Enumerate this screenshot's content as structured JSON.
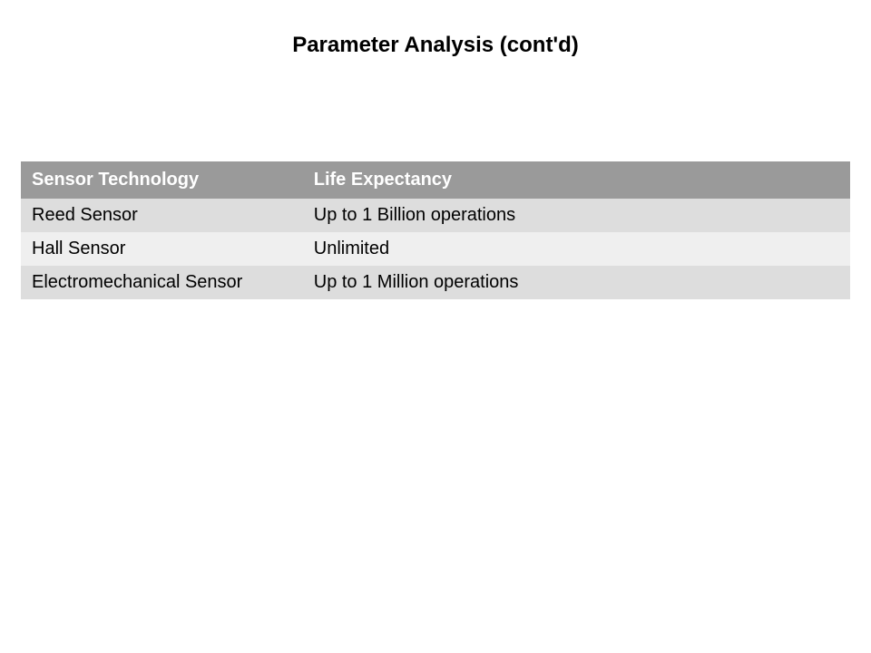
{
  "title": "Parameter Analysis (cont'd)",
  "table": {
    "columns": [
      {
        "label": "Sensor Technology",
        "width_pct": 34
      },
      {
        "label": "Life Expectancy",
        "width_pct": 66
      }
    ],
    "rows": [
      {
        "sensor": "Reed Sensor",
        "life": "Up to 1 Billion operations"
      },
      {
        "sensor": "Hall Sensor",
        "life": "Unlimited"
      },
      {
        "sensor": "Electromechanical Sensor",
        "life": "Up to 1 Million operations"
      }
    ],
    "header_bg": "#9a9a9a",
    "header_fg": "#ffffff",
    "row_odd_bg": "#dddddd",
    "row_even_bg": "#efefef",
    "text_color": "#000000",
    "font_size": 20,
    "title_font_size": 24
  }
}
